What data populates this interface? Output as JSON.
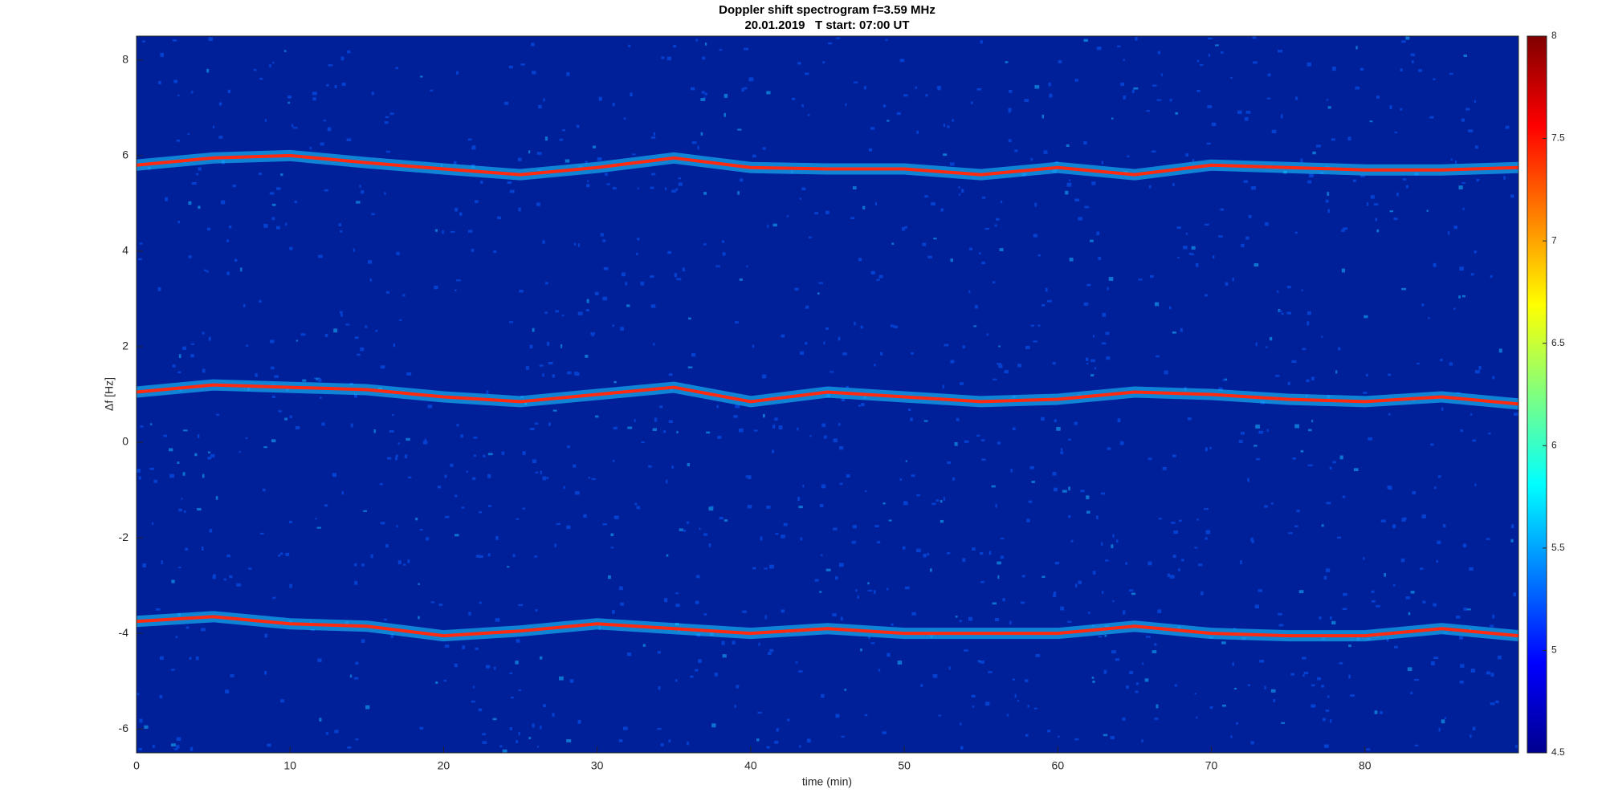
{
  "chart_data": {
    "type": "spectrogram",
    "title": "Doppler shift spectrogram f=3.59 MHz",
    "subtitle": "20.01.2019   T start: 07:00 UT",
    "x_label": "time (min)",
    "y_label": "Δf [Hz]",
    "colormap": "jet",
    "clim": [
      4.5,
      8
    ],
    "cticks": [
      4.5,
      5,
      5.5,
      6,
      6.5,
      7,
      7.5,
      8
    ],
    "halo_color": "#19c8ff",
    "x": [
      0,
      5,
      10,
      15,
      20,
      25,
      30,
      35,
      40,
      45,
      50,
      55,
      60,
      65,
      70,
      75,
      80,
      85,
      90
    ],
    "series": [
      {
        "color": "#ff2a10",
        "values": [
          5.8,
          5.95,
          6.0,
          5.85,
          5.72,
          5.6,
          5.75,
          5.95,
          5.75,
          5.72,
          5.72,
          5.6,
          5.75,
          5.6,
          5.8,
          5.75,
          5.7,
          5.7,
          5.75
        ]
      },
      {
        "color": "#ff2a10",
        "values": [
          1.05,
          1.2,
          1.15,
          1.1,
          0.95,
          0.85,
          1.0,
          1.15,
          0.85,
          1.05,
          0.95,
          0.85,
          0.9,
          1.05,
          1.0,
          0.9,
          0.85,
          0.95,
          0.8
        ]
      },
      {
        "color": "#ff2a10",
        "values": [
          -3.75,
          -3.65,
          -3.8,
          -3.85,
          -4.05,
          -3.95,
          -3.8,
          -3.9,
          -4.0,
          -3.9,
          -4.0,
          -4.0,
          -4.0,
          -3.85,
          -4.0,
          -4.05,
          -4.05,
          -3.9,
          -4.05
        ]
      }
    ],
    "xlim": [
      0,
      90
    ],
    "xticks": [
      0,
      10,
      20,
      30,
      40,
      50,
      60,
      70,
      80
    ],
    "ylim": [
      -6.5,
      8.5
    ],
    "yticks": [
      -6,
      -4,
      -2,
      0,
      2,
      4,
      6,
      8
    ]
  }
}
